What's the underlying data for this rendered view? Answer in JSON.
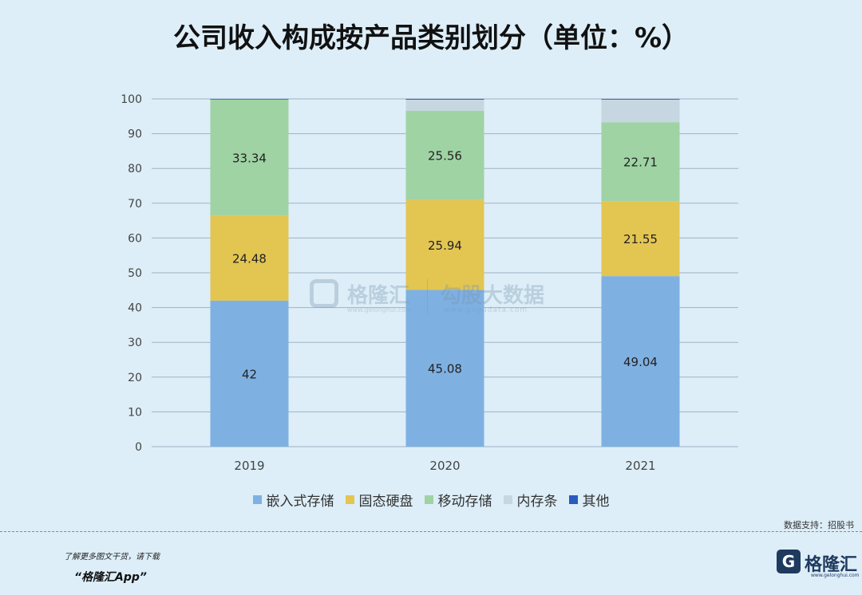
{
  "title": "公司收入构成按产品类别划分（单位：%）",
  "chart_data": {
    "type": "bar",
    "stacked": true,
    "categories": [
      "2019",
      "2020",
      "2021"
    ],
    "series": [
      {
        "name": "嵌入式存储",
        "color": "#7fb0e2",
        "values": [
          42,
          45.08,
          49.04
        ],
        "labels": [
          "42",
          "45.08",
          "49.04"
        ]
      },
      {
        "name": "固态硬盘",
        "color": "#e3c552",
        "values": [
          24.48,
          25.94,
          21.55
        ],
        "labels": [
          "24.48",
          "25.94",
          "21.55"
        ]
      },
      {
        "name": "移动存储",
        "color": "#9fd3a4",
        "values": [
          33.34,
          25.56,
          22.71
        ],
        "labels": [
          "33.34",
          "25.56",
          "22.71"
        ]
      },
      {
        "name": "内存条",
        "color": "#c7d7e2",
        "values": [
          0,
          3.2,
          6.5
        ],
        "labels": [
          "",
          "",
          ""
        ]
      },
      {
        "name": "其他",
        "color": "#2a5bbf",
        "values": [
          0.18,
          0.22,
          0.2
        ],
        "labels": [
          "",
          "",
          ""
        ]
      }
    ],
    "ylim": [
      0,
      100
    ],
    "yticks": [
      0,
      10,
      20,
      30,
      40,
      50,
      60,
      70,
      80,
      90,
      100
    ],
    "grid": true,
    "legend_position": "bottom"
  },
  "watermark": {
    "brand": "格隆汇",
    "brand_url": "www.gelonghui.com",
    "brand2": "勾股大数据",
    "brand2_url": "www.gogudata.com"
  },
  "source": "数据支持：招股书",
  "footer": {
    "note": "了解更多图文干货，请下载",
    "app": "“格隆汇App”",
    "logo_letter": "G",
    "brand": "格隆汇",
    "brand_url": "www.gelonghui.com"
  }
}
